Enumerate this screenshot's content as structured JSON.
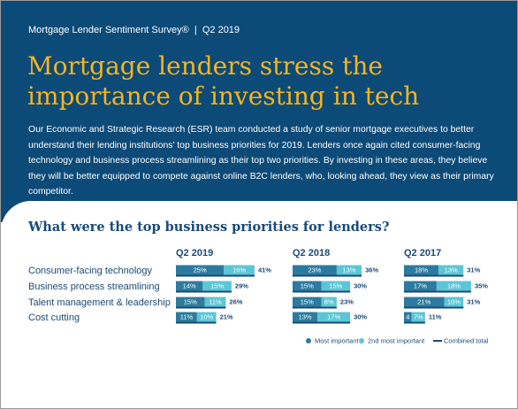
{
  "header": {
    "kicker": "Mortgage Lender Sentiment Survey®  |  Q2 2019",
    "title": "Mortgage lenders stress the importance of investing in tech",
    "intro": "Our Economic and Strategic Research (ESR) team conducted a study of senior mortgage executives to better understand their lending institutions’ top business priorities for 2019. Lenders once again cited consumer-facing technology and business process streamlining as their top two priorities. By investing in these areas, they believe they will be better equipped to compete against online B2C lenders, who, looking ahead, they view as their primary competitor."
  },
  "chart_data": {
    "type": "bar",
    "stacked": true,
    "title": "What were the top business priorities for lenders?",
    "categories": [
      "Consumer-facing technology",
      "Business process streamlining",
      "Talent management & leadership",
      "Cost cutting"
    ],
    "series": [
      {
        "name": "Most important",
        "color": "#2c7b9e"
      },
      {
        "name": "2nd most important",
        "color": "#5cc6d5"
      },
      {
        "name": "Combined total",
        "color": "#1b4a78"
      }
    ],
    "legend": "bottom-right",
    "panels": [
      {
        "title": "Q2 2019",
        "series": [
          {
            "values": [
              25,
              14,
              15,
              11
            ],
            "value_labels": [
              "25%",
              "14%",
              "15%",
              "11%"
            ]
          },
          {
            "values": [
              16,
              15,
              11,
              10
            ],
            "value_labels": [
              "16%",
              "15%",
              "11%",
              "10%"
            ]
          },
          {
            "values": [
              41,
              29,
              26,
              21
            ],
            "value_labels": [
              "41%",
              "29%",
              "26%",
              "21%"
            ]
          }
        ]
      },
      {
        "title": "Q2 2018",
        "series": [
          {
            "values": [
              23,
              15,
              15,
              13
            ],
            "value_labels": [
              "23%",
              "15%",
              "15%",
              "13%"
            ]
          },
          {
            "values": [
              13,
              15,
              8,
              17
            ],
            "value_labels": [
              "13%",
              "15%",
              "8%",
              "17%"
            ]
          },
          {
            "values": [
              36,
              30,
              23,
              30
            ],
            "value_labels": [
              "36%",
              "30%",
              "23%",
              "30%"
            ]
          }
        ]
      },
      {
        "title": "Q2 2017",
        "series": [
          {
            "values": [
              18,
              17,
              21,
              4
            ],
            "value_labels": [
              "18%",
              "17%",
              "21%",
              "4"
            ]
          },
          {
            "values": [
              13,
              18,
              10,
              7
            ],
            "value_labels": [
              "13%",
              "18%",
              "10%",
              "7%"
            ]
          },
          {
            "values": [
              31,
              35,
              31,
              11
            ],
            "value_labels": [
              "31%",
              "35%",
              "31%",
              "11%"
            ]
          }
        ]
      }
    ]
  }
}
